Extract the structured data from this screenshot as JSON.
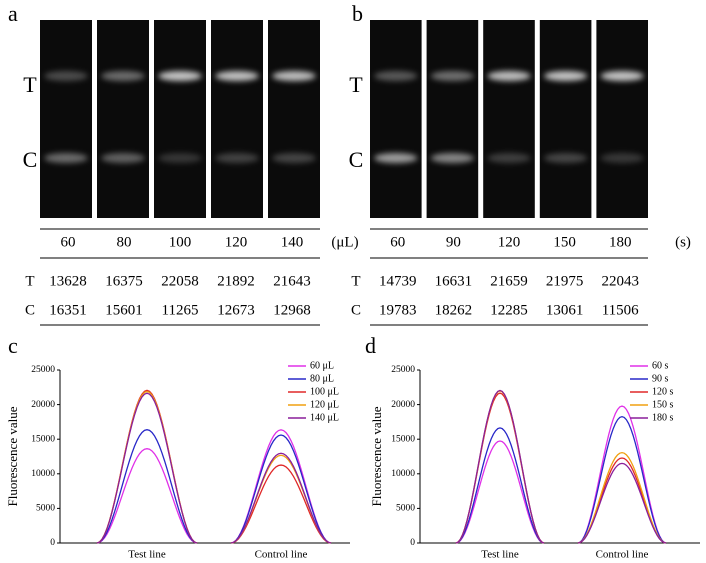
{
  "panels": [
    {
      "label": "a",
      "strip_labels": [
        "T",
        "C"
      ],
      "columns": [
        "60",
        "80",
        "100",
        "120",
        "140"
      ],
      "unit": "(μL)",
      "rows": [
        {
          "label": "T",
          "values": [
            13628,
            16375,
            22058,
            21892,
            21643
          ]
        },
        {
          "label": "C",
          "values": [
            16351,
            15601,
            11265,
            12673,
            12968
          ]
        }
      ]
    },
    {
      "label": "b",
      "strip_labels": [
        "T",
        "C"
      ],
      "columns": [
        "60",
        "90",
        "120",
        "150",
        "180"
      ],
      "unit": "(s)",
      "rows": [
        {
          "label": "T",
          "values": [
            14739,
            16631,
            21659,
            21975,
            22043
          ]
        },
        {
          "label": "C",
          "values": [
            19783,
            18262,
            12285,
            13061,
            11506
          ]
        }
      ]
    }
  ],
  "chart_data": [
    {
      "type": "line",
      "panel_label": "c",
      "ylabel": "Fluorescence value",
      "categories": [
        "Test line",
        "Control line"
      ],
      "ylim": [
        0,
        25000
      ],
      "yticks": [
        0,
        5000,
        10000,
        15000,
        20000,
        25000
      ],
      "legend": "upper right",
      "series": [
        {
          "name": "60 μL",
          "color": "#e030e8",
          "values": [
            13628,
            16351
          ]
        },
        {
          "name": "80 μL",
          "color": "#2828c8",
          "values": [
            16375,
            15601
          ]
        },
        {
          "name": "100 μL",
          "color": "#e02828",
          "values": [
            22058,
            11265
          ]
        },
        {
          "name": "120 μL",
          "color": "#f0a010",
          "values": [
            21892,
            12673
          ]
        },
        {
          "name": "140 μL",
          "color": "#8a1e9a",
          "values": [
            21643,
            12968
          ]
        }
      ]
    },
    {
      "type": "line",
      "panel_label": "d",
      "ylabel": "Fluorescence value",
      "categories": [
        "Test line",
        "Control line"
      ],
      "ylim": [
        0,
        25000
      ],
      "yticks": [
        0,
        5000,
        10000,
        15000,
        20000,
        25000
      ],
      "legend": "upper right",
      "series": [
        {
          "name": "60 s",
          "color": "#e030e8",
          "values": [
            14739,
            19783
          ]
        },
        {
          "name": "90 s",
          "color": "#2828c8",
          "values": [
            16631,
            18262
          ]
        },
        {
          "name": "120 s",
          "color": "#e02828",
          "values": [
            21659,
            12285
          ]
        },
        {
          "name": "150 s",
          "color": "#f0a010",
          "values": [
            21975,
            13061
          ]
        },
        {
          "name": "180 s",
          "color": "#8a1e9a",
          "values": [
            22043,
            11506
          ]
        }
      ]
    }
  ]
}
